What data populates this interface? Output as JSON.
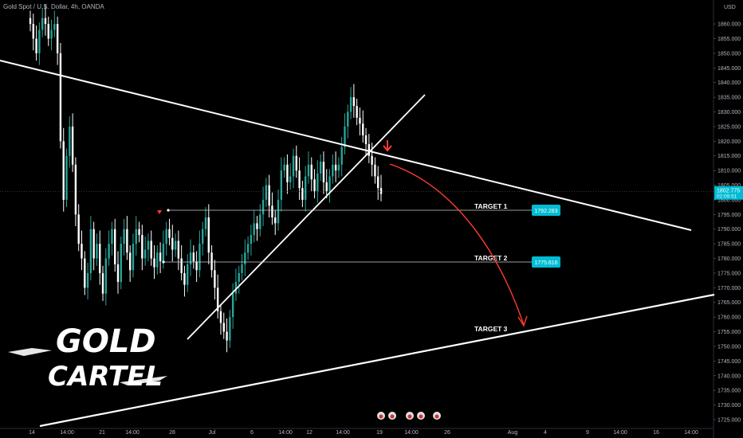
{
  "header": {
    "symbol": "Gold Spot / U.S. Dollar, 4h, OANDA"
  },
  "price_axis": {
    "currency": "USD",
    "current_price": "1802.775",
    "countdown": "02:09:51"
  },
  "watermark": {
    "line1": "GOLD",
    "line2": "CARTEL"
  },
  "colors": {
    "background": "#000000",
    "up_candle": "#26a69a",
    "down_candle": "#ffffff",
    "trendline": "#ffffff",
    "arrow": "#ff3b30",
    "target_box": "#00bcd4"
  },
  "chart_data": {
    "type": "candlestick",
    "ylim": [
      1722,
      1866
    ],
    "yticks": [
      1725,
      1730,
      1735,
      1740,
      1745,
      1750,
      1755,
      1760,
      1765,
      1770,
      1775,
      1780,
      1785,
      1790,
      1795,
      1800,
      1805,
      1810,
      1815,
      1820,
      1825,
      1830,
      1835,
      1840,
      1845,
      1850,
      1855,
      1860
    ],
    "ytick_labels": [
      "1725.000",
      "1730.000",
      "1735.000",
      "1740.000",
      "1745.000",
      "1750.000",
      "1755.000",
      "1760.000",
      "1765.000",
      "1770.000",
      "1775.000",
      "1780.000",
      "1785.000",
      "1790.000",
      "1795.000",
      "1800.000",
      "1805.000",
      "1810.000",
      "1815.000",
      "1820.000",
      "1825.000",
      "1830.000",
      "1835.000",
      "1840.000",
      "1845.000",
      "1850.000",
      "1855.000",
      "1860.000"
    ],
    "x_time_labels": [
      "14",
      "14:00",
      "21",
      "14:00",
      "28",
      "Jul",
      "6",
      "14:00",
      "12",
      "14:00",
      "19",
      "14:00",
      "26",
      "Aug",
      "4",
      "9",
      "14:00",
      "16",
      "14:00"
    ],
    "targets": [
      {
        "label": "TARGET 1",
        "price": "1792.283"
      },
      {
        "label": "TARGET 2",
        "price": "1775.616"
      },
      {
        "label": "TARGET 3"
      }
    ],
    "close_series": [
      1860,
      1855,
      1850,
      1858,
      1862,
      1860,
      1855,
      1858,
      1860,
      1850,
      1820,
      1800,
      1815,
      1825,
      1812,
      1795,
      1785,
      1780,
      1770,
      1775,
      1790,
      1780,
      1785,
      1775,
      1768,
      1780,
      1785,
      1790,
      1778,
      1772,
      1785,
      1790,
      1782,
      1776,
      1785,
      1790,
      1788,
      1780,
      1783,
      1786,
      1780,
      1777,
      1782,
      1779,
      1785,
      1790,
      1787,
      1783,
      1786,
      1780,
      1775,
      1771,
      1778,
      1782,
      1779,
      1776,
      1785,
      1790,
      1794,
      1782,
      1776,
      1770,
      1762,
      1758,
      1755,
      1752,
      1760,
      1768,
      1772,
      1775,
      1778,
      1782,
      1785,
      1788,
      1792,
      1790,
      1795,
      1800,
      1805,
      1798,
      1794,
      1792,
      1800,
      1810,
      1812,
      1806,
      1808,
      1815,
      1810,
      1804,
      1800,
      1808,
      1812,
      1807,
      1803,
      1809,
      1813,
      1806,
      1803,
      1808,
      1812,
      1810,
      1812,
      1818,
      1825,
      1830,
      1835,
      1832,
      1828,
      1826,
      1822,
      1819,
      1815,
      1812,
      1808,
      1804,
      1802
    ]
  }
}
